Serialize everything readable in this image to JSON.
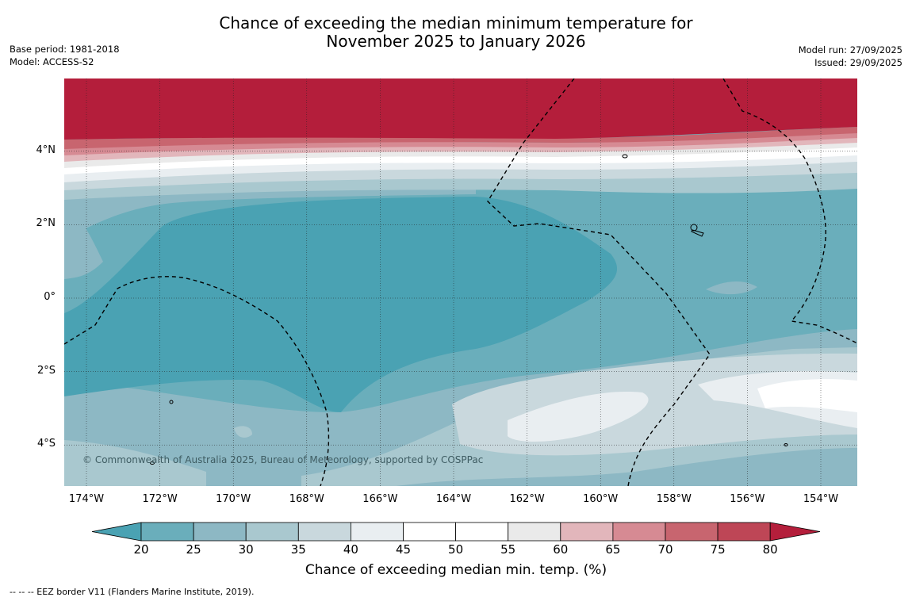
{
  "title": {
    "line1": "Chance of exceeding the median minimum temperature for",
    "line2": "November 2025 to January 2026"
  },
  "meta_left": {
    "base_period": "Base period: 1981-2018",
    "model": "Model: ACCESS-S2"
  },
  "meta_right": {
    "model_run": "Model run: 27/09/2025",
    "issued": "Issued: 29/09/2025"
  },
  "map": {
    "copyright": "© Commonwealth of Australia 2025, Bureau of Meteorology, supported by COSPPac",
    "lat_labels": [
      "4°N",
      "2°N",
      "0°",
      "2°S",
      "4°S"
    ],
    "lon_labels": [
      "174°W",
      "172°W",
      "170°W",
      "168°W",
      "166°W",
      "164°W",
      "162°W",
      "160°W",
      "158°W",
      "156°W",
      "154°W"
    ],
    "lat_values": [
      4,
      2,
      0,
      -2,
      -4
    ],
    "lon_values": [
      -174,
      -172,
      -170,
      -168,
      -166,
      -164,
      -162,
      -160,
      -158,
      -156,
      -154
    ]
  },
  "colorbar": {
    "ticks": [
      "20",
      "25",
      "30",
      "35",
      "40",
      "45",
      "50",
      "55",
      "60",
      "65",
      "70",
      "75",
      "80"
    ],
    "colors": [
      "#4aa2b3",
      "#6aaebb",
      "#8db8c4",
      "#a9c8cf",
      "#c9d8dd",
      "#e9eef1",
      "#ffffff",
      "#ffffff",
      "#eaeaea",
      "#e2b6bb",
      "#d68a93",
      "#c8656f",
      "#be4656",
      "#b41e3b"
    ],
    "label": "Chance of exceeding median min. temp. (%)"
  },
  "footnote": "--  --  -- EEZ border V11 (Flanders Marine Institute, 2019)."
}
